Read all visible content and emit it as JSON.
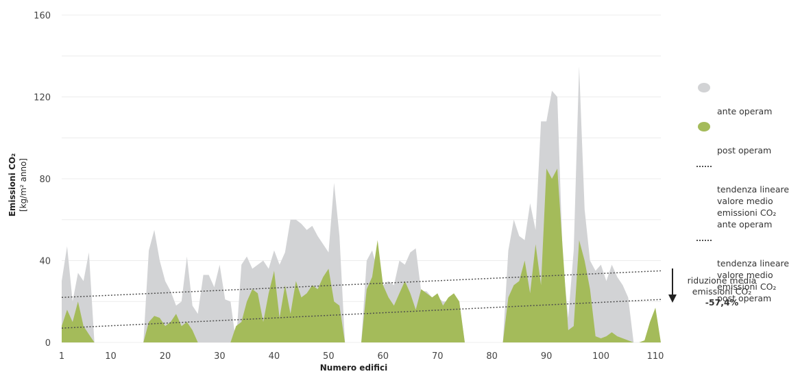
{
  "chart_data": {
    "type": "area",
    "xlabel": "Numero edifici",
    "ylabel": "Emissioni CO₂",
    "ylabel_unit": "[kg/m² anno]",
    "xlim": [
      1,
      111
    ],
    "ylim": [
      0,
      160
    ],
    "x_ticks": [
      "1",
      "10",
      "20",
      "30",
      "40",
      "50",
      "60",
      "70",
      "80",
      "90",
      "100",
      "110"
    ],
    "y_ticks": [
      "0",
      "40",
      "80",
      "120",
      "160"
    ],
    "grid": true,
    "legend_position": "right",
    "x": [
      1,
      2,
      3,
      4,
      5,
      6,
      7,
      8,
      9,
      10,
      11,
      12,
      13,
      14,
      15,
      16,
      17,
      18,
      19,
      20,
      21,
      22,
      23,
      24,
      25,
      26,
      27,
      28,
      29,
      30,
      31,
      32,
      33,
      34,
      35,
      36,
      37,
      38,
      39,
      40,
      41,
      42,
      43,
      44,
      45,
      46,
      47,
      48,
      49,
      50,
      51,
      52,
      53,
      54,
      55,
      56,
      57,
      58,
      59,
      60,
      61,
      62,
      63,
      64,
      65,
      66,
      67,
      68,
      69,
      70,
      71,
      72,
      73,
      74,
      75,
      76,
      77,
      78,
      79,
      80,
      81,
      82,
      83,
      84,
      85,
      86,
      87,
      88,
      89,
      90,
      91,
      92,
      93,
      94,
      95,
      96,
      97,
      98,
      99,
      100,
      101,
      102,
      103,
      104,
      105,
      106,
      107,
      108,
      109,
      110,
      111
    ],
    "series": [
      {
        "name": "ante operam",
        "color": "#d2d3d5",
        "values": [
          30,
          47,
          20,
          34,
          30,
          44,
          0,
          0,
          0,
          0,
          0,
          0,
          0,
          0,
          0,
          0,
          45,
          55,
          40,
          30,
          25,
          18,
          20,
          42,
          18,
          14,
          33,
          33,
          27,
          38,
          21,
          20,
          0,
          38,
          42,
          36,
          38,
          40,
          36,
          45,
          38,
          44,
          60,
          60,
          58,
          55,
          57,
          52,
          48,
          44,
          78,
          52,
          0,
          0,
          0,
          0,
          40,
          45,
          35,
          28,
          30,
          28,
          40,
          38,
          44,
          46,
          25,
          25,
          22,
          22,
          20,
          20,
          18,
          20,
          0,
          0,
          0,
          0,
          0,
          0,
          0,
          0,
          45,
          60,
          52,
          50,
          68,
          55,
          108,
          108,
          123,
          120,
          40,
          12,
          45,
          135,
          65,
          40,
          35,
          38,
          30,
          38,
          32,
          28,
          22,
          0,
          0,
          0,
          0,
          0,
          0
        ]
      },
      {
        "name": "post operam",
        "color": "#a4bb5a",
        "values": [
          8,
          16,
          10,
          20,
          8,
          4,
          0,
          0,
          0,
          0,
          0,
          0,
          0,
          0,
          0,
          0,
          10,
          13,
          12,
          8,
          10,
          14,
          8,
          10,
          6,
          0,
          0,
          0,
          0,
          0,
          0,
          0,
          8,
          10,
          20,
          26,
          24,
          10,
          24,
          35,
          12,
          28,
          14,
          30,
          22,
          24,
          28,
          26,
          32,
          36,
          20,
          18,
          0,
          0,
          0,
          0,
          26,
          32,
          50,
          28,
          22,
          18,
          24,
          30,
          24,
          16,
          26,
          24,
          22,
          24,
          18,
          22,
          24,
          20,
          0,
          0,
          0,
          0,
          0,
          0,
          0,
          0,
          22,
          28,
          30,
          40,
          24,
          48,
          28,
          85,
          80,
          85,
          45,
          6,
          8,
          50,
          40,
          26,
          3,
          2,
          3,
          5,
          3,
          2,
          1,
          0,
          0,
          1,
          10,
          17,
          0
        ]
      }
    ],
    "trend_lines": [
      {
        "name": "tendenza lineare valore medio emissioni CO₂ ante operam",
        "x": [
          1,
          111
        ],
        "y": [
          22,
          35
        ]
      },
      {
        "name": "tendenza lineare valore medio emissioni CO₂ post operam",
        "x": [
          1,
          111
        ],
        "y": [
          7,
          21
        ]
      }
    ]
  },
  "legend": {
    "items": [
      {
        "label": "ante operam",
        "color": "#d2d3d5"
      },
      {
        "label": "post operam",
        "color": "#a4bb5a"
      },
      {
        "label": "tendenza lineare\nvalore medio\nemissioni CO₂\nante operam",
        "color": "#4d4d4d"
      },
      {
        "label": "tendenza lineare\nvalore medio\nemissioni CO₂\npost operam",
        "color": "#4d4d4d"
      }
    ]
  },
  "annotation": {
    "text": "riduzione media\nemissioni CO₂",
    "value": "-57,4%"
  }
}
